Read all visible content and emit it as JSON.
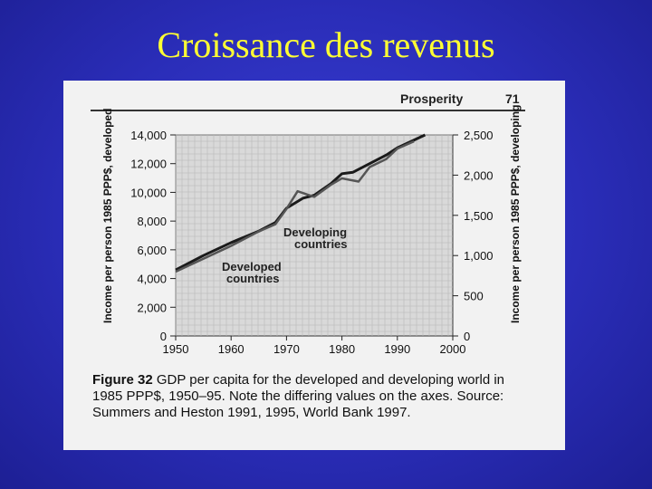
{
  "slide": {
    "title": "Croissance des revenus"
  },
  "page": {
    "running_head": "Prosperity",
    "page_number": "71"
  },
  "caption": {
    "label": "Figure 32",
    "text": "GDP per capita for the developed and developing world in 1985 PPP$, 1950–95. Note the differing values on the axes. Source: Summers and Heston 1991, 1995, World Bank 1997."
  },
  "chart_data": {
    "type": "line",
    "xlabel": "",
    "ylabel_left": "Income per person 1985 PPP$, developed",
    "ylabel_right": "Income per person 1985 PPP$, developing",
    "xlim": [
      1950,
      2000
    ],
    "ylim_left": [
      0,
      14000
    ],
    "ylim_right": [
      0,
      2500
    ],
    "x_ticks": [
      "1950",
      "1960",
      "1970",
      "1980",
      "1990",
      "2000"
    ],
    "y_ticks_left": [
      "0",
      "2,000",
      "4,000",
      "6,000",
      "8,000",
      "10,000",
      "12,000",
      "14,000"
    ],
    "y_ticks_right": [
      "0",
      "500",
      "1,000",
      "1,500",
      "2,000",
      "2,500"
    ],
    "grid": true,
    "series": [
      {
        "name": "Developed countries",
        "axis": "left",
        "x": [
          1950,
          1955,
          1960,
          1965,
          1968,
          1970,
          1973,
          1975,
          1978,
          1980,
          1982,
          1985,
          1988,
          1990,
          1995
        ],
        "y": [
          4600,
          5600,
          6500,
          7300,
          7900,
          8900,
          9600,
          9800,
          10600,
          11300,
          11400,
          12000,
          12600,
          13100,
          14000
        ]
      },
      {
        "name": "Developing countries",
        "axis": "right",
        "x": [
          1950,
          1955,
          1960,
          1965,
          1968,
          1970,
          1972,
          1975,
          1978,
          1980,
          1983,
          1985,
          1988,
          1990,
          1993
        ],
        "y": [
          800,
          960,
          1120,
          1300,
          1390,
          1580,
          1800,
          1730,
          1880,
          1960,
          1920,
          2100,
          2200,
          2330,
          2420
        ]
      }
    ],
    "annotations": [
      "Developing countries",
      "Developed countries"
    ]
  }
}
